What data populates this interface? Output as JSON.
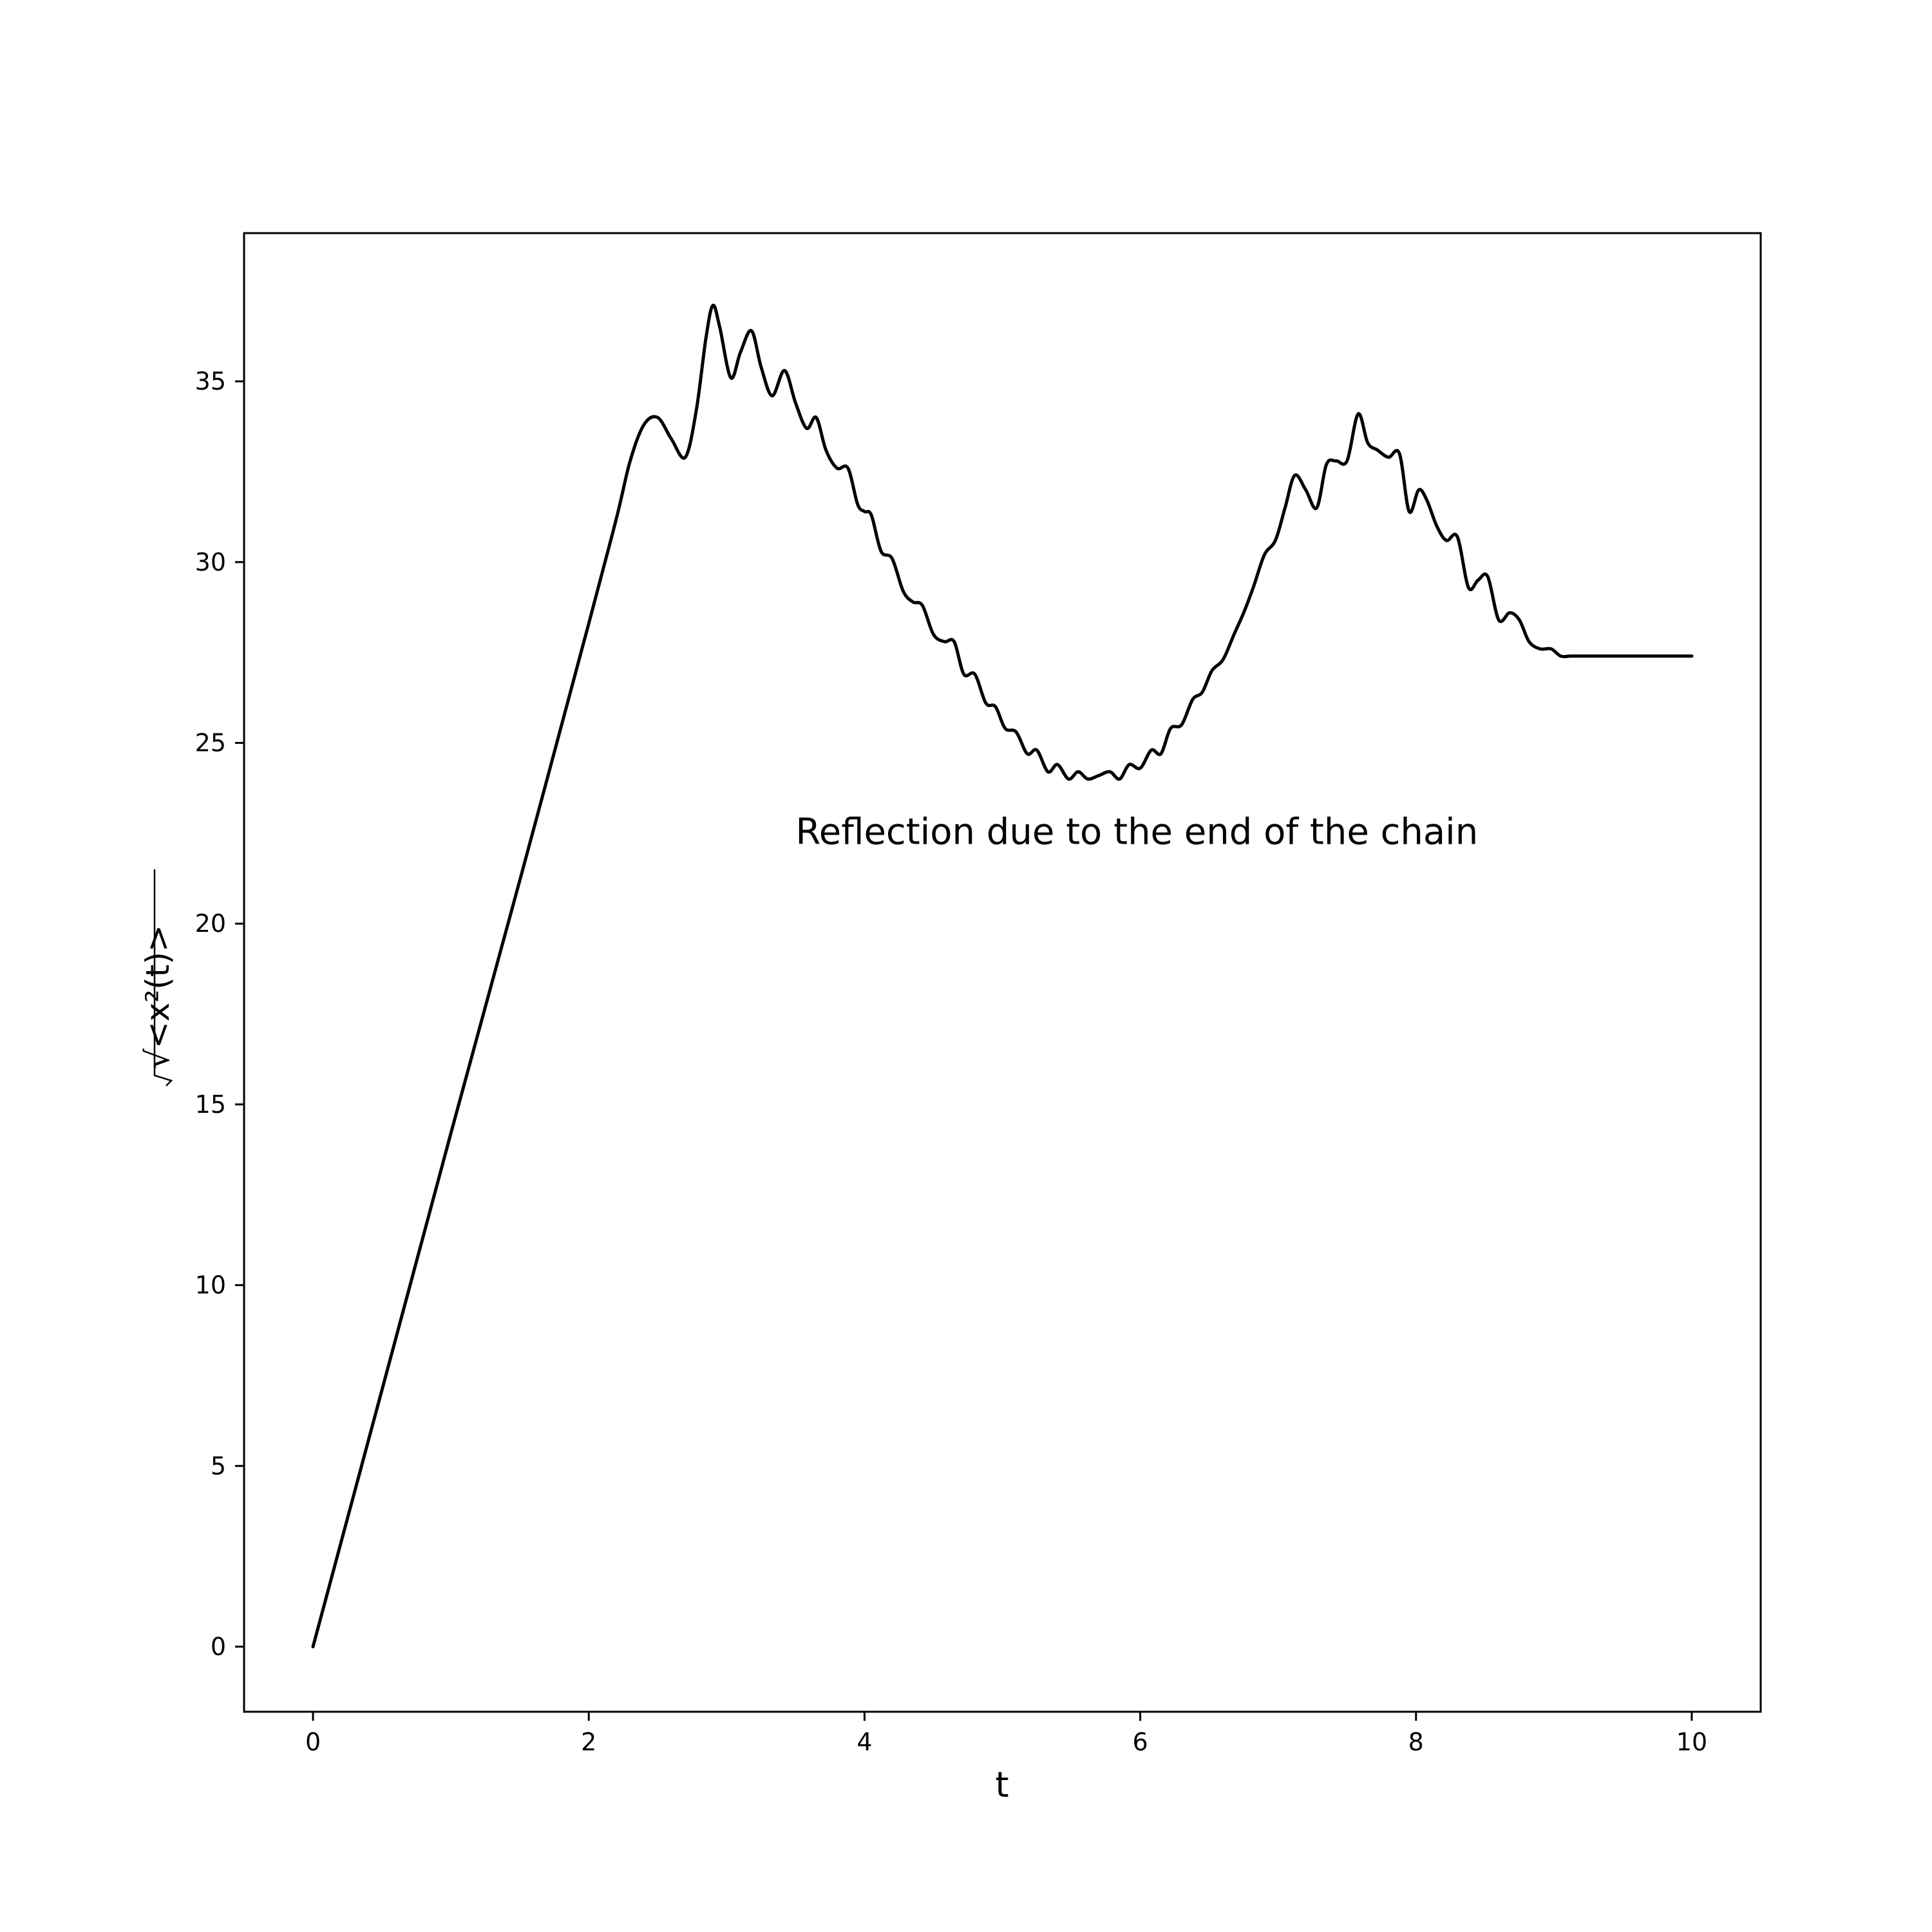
{
  "chart_data": {
    "type": "line",
    "xlabel": "t",
    "ylabel": "√<x²(t)>",
    "xlim": [
      -0.5,
      10.5
    ],
    "ylim": [
      -1.8,
      39.1
    ],
    "xticks": [
      0,
      2,
      4,
      6,
      8,
      10
    ],
    "yticks": [
      0,
      5,
      10,
      15,
      20,
      25,
      30,
      35
    ],
    "grid": false,
    "annotations": [
      {
        "text": "Reflection due to the end of the chain",
        "x": 3.5,
        "y": 22.2
      }
    ],
    "series": [
      {
        "color": "#000000",
        "x": [
          0,
          0.5,
          1.0,
          1.5,
          2.0,
          2.2,
          2.3,
          2.4,
          2.5,
          2.6,
          2.7,
          2.78,
          2.85,
          2.9,
          2.95,
          3.03,
          3.1,
          3.18,
          3.25,
          3.33,
          3.42,
          3.5,
          3.58,
          3.65,
          3.72,
          3.8,
          3.88,
          3.95,
          4.0,
          4.05,
          4.12,
          4.2,
          4.28,
          4.35,
          4.42,
          4.5,
          4.58,
          4.65,
          4.72,
          4.8,
          4.88,
          4.95,
          5.02,
          5.1,
          5.18,
          5.25,
          5.33,
          5.4,
          5.48,
          5.55,
          5.62,
          5.7,
          5.78,
          5.85,
          5.92,
          6.0,
          6.08,
          6.15,
          6.22,
          6.3,
          6.38,
          6.45,
          6.52,
          6.6,
          6.68,
          6.75,
          6.82,
          6.9,
          6.98,
          7.05,
          7.12,
          7.2,
          7.28,
          7.35,
          7.42,
          7.5,
          7.58,
          7.65,
          7.72,
          7.8,
          7.88,
          7.95,
          8.02,
          8.08,
          8.15,
          8.22,
          8.3,
          8.38,
          8.45,
          8.52,
          8.6,
          8.68,
          8.75,
          8.82,
          8.9,
          8.98,
          9.05,
          9.12,
          9.2,
          9.28,
          9.35,
          9.42,
          9.5,
          9.58,
          9.65,
          9.72,
          9.8,
          9.88,
          9.95,
          10.0
        ],
        "y": [
          0,
          7.1,
          14.2,
          21.2,
          28.3,
          31.2,
          32.8,
          33.8,
          34.0,
          33.4,
          32.9,
          34.2,
          36.2,
          37.1,
          36.5,
          35.1,
          35.8,
          36.4,
          35.4,
          34.6,
          35.3,
          34.4,
          33.7,
          34.0,
          33.1,
          32.6,
          32.6,
          31.6,
          31.4,
          31.3,
          30.3,
          30.1,
          29.2,
          28.9,
          28.8,
          28.0,
          27.8,
          27.8,
          26.9,
          26.9,
          26.1,
          26.0,
          25.4,
          25.3,
          24.7,
          24.8,
          24.2,
          24.4,
          24.0,
          24.2,
          24.0,
          24.1,
          24.2,
          24.0,
          24.4,
          24.3,
          24.8,
          24.7,
          25.4,
          25.5,
          26.2,
          26.4,
          27.0,
          27.3,
          28.0,
          28.6,
          29.3,
          30.2,
          30.6,
          31.5,
          32.4,
          32.0,
          31.5,
          32.7,
          32.8,
          32.8,
          34.1,
          33.3,
          33.1,
          32.9,
          33.0,
          31.4,
          32.0,
          31.7,
          31.0,
          30.6,
          30.7,
          29.3,
          29.5,
          29.6,
          28.4,
          28.6,
          28.4,
          27.8,
          27.6,
          27.6,
          27.4,
          27.4,
          27.4,
          27.4,
          27.4,
          27.4,
          27.4,
          27.4,
          27.4,
          27.4,
          27.4,
          27.4,
          27.4,
          27.4
        ]
      }
    ]
  }
}
